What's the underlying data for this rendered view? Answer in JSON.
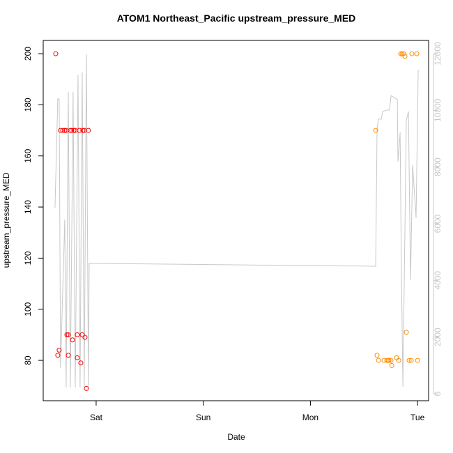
{
  "chart_data": {
    "type": "scatter",
    "title": "ATOM1 Northeast_Pacific upstream_pressure_MED",
    "x_label": "Date",
    "y_label": "upstream_pressure_MED",
    "xlim": [
      0.506,
      4.103
    ],
    "ylim": [
      64.2,
      205.2
    ],
    "y2lim": [
      -246,
      12467
    ],
    "xticks": [
      {
        "value": 1,
        "label": "Sat"
      },
      {
        "value": 2,
        "label": "Sun"
      },
      {
        "value": 3,
        "label": "Mon"
      },
      {
        "value": 4,
        "label": "Tue"
      }
    ],
    "yticks": [
      80,
      100,
      120,
      140,
      160,
      180,
      200
    ],
    "y2ticks": [
      0,
      2000,
      4000,
      6000,
      8000,
      10000,
      12000
    ],
    "y2_color": "#c8c8c8",
    "series": [
      {
        "mark": "line",
        "axis": "y2",
        "color": "#c8c8c8",
        "x": [
          0.616,
          0.642,
          0.655,
          0.668,
          0.707,
          0.72,
          0.74,
          0.759,
          0.785,
          0.805,
          0.831,
          0.85,
          0.87,
          0.889,
          0.909,
          0.928,
          0.935,
          3.609,
          3.622,
          3.635,
          3.661,
          3.674,
          3.713,
          3.739,
          3.752,
          3.811,
          3.817,
          3.837,
          3.85,
          3.863,
          3.876,
          3.895,
          3.915,
          3.934,
          3.954,
          3.986,
          4.006
        ],
        "values": [
          6565,
          10400,
          10400,
          910,
          6150,
          220,
          10650,
          220,
          10650,
          220,
          11260,
          220,
          11340,
          220,
          11975,
          220,
          4600,
          4500,
          9340,
          9690,
          9690,
          9960,
          10010,
          10010,
          10520,
          10380,
          8190,
          9220,
          4060,
          250,
          4060,
          9640,
          9960,
          4010,
          8070,
          6200,
          11430
        ]
      },
      {
        "mark": "point",
        "color": "#ff0000",
        "x": [
          0.623,
          0.642,
          0.655,
          0.668,
          0.688,
          0.707,
          0.72,
          0.727,
          0.74,
          0.74,
          0.759,
          0.772,
          0.779,
          0.792,
          0.805,
          0.824,
          0.824,
          0.844,
          0.857,
          0.87,
          0.876,
          0.889,
          0.896,
          0.909,
          0.928
        ],
        "values": [
          200,
          82,
          84,
          170,
          170,
          170,
          170,
          90,
          90,
          82,
          170,
          170,
          88,
          170,
          170,
          90,
          81,
          170,
          79,
          90,
          170,
          170,
          89,
          69,
          170
        ]
      },
      {
        "mark": "point",
        "color": "#ff8c00",
        "x": [
          3.609,
          3.622,
          3.635,
          3.687,
          3.713,
          3.726,
          3.733,
          3.752,
          3.759,
          3.804,
          3.824,
          3.843,
          3.856,
          3.869,
          3.882,
          3.895,
          3.921,
          3.941,
          3.947,
          3.993,
          4.0
        ],
        "values": [
          170,
          82,
          80,
          80,
          80,
          80,
          80,
          80,
          78,
          81,
          80,
          200,
          200,
          200,
          199,
          91,
          80,
          80,
          200,
          200,
          80
        ]
      }
    ]
  }
}
